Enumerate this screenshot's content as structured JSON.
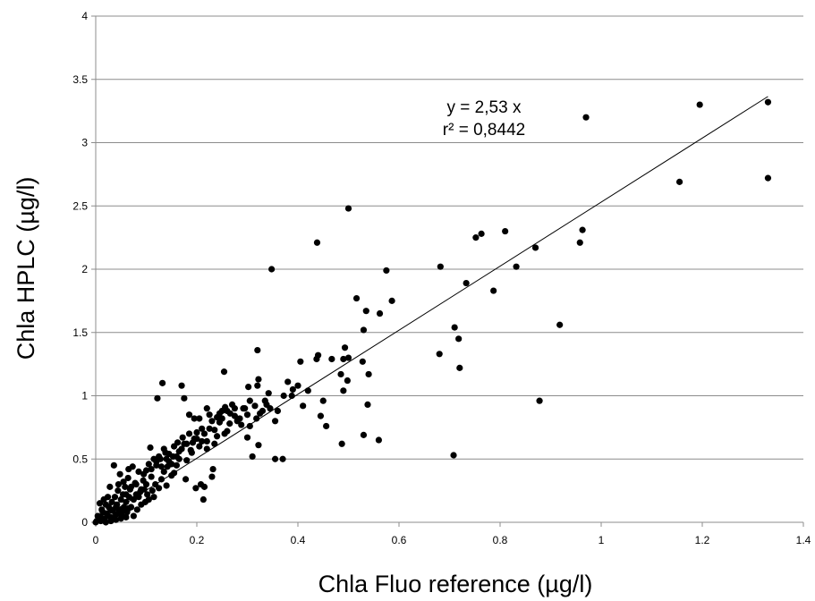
{
  "chart_data": {
    "type": "scatter",
    "xlabel": "Chla Fluo reference (µg/l)",
    "ylabel": "Chla HPLC (µg/l)",
    "xlim": [
      0,
      1.4
    ],
    "ylim": [
      0,
      4
    ],
    "xticks": [
      "0",
      "0.2",
      "0.4",
      "0.6",
      "0.8",
      "1",
      "1.2",
      "1.4"
    ],
    "yticks": [
      "0",
      "0.5",
      "1",
      "1.5",
      "2",
      "2.5",
      "3",
      "3.5",
      "4"
    ],
    "xtick_values": [
      0,
      0.2,
      0.4,
      0.6,
      0.8,
      1.0,
      1.2,
      1.4
    ],
    "ytick_values": [
      0,
      0.5,
      1,
      1.5,
      2,
      2.5,
      3,
      3.5,
      4
    ],
    "grid": "horizontal",
    "marker_color": "#000000",
    "trendline": {
      "slope": 2.53,
      "x_range": [
        0,
        1.33
      ]
    },
    "annotations": [
      "y = 2,53 x",
      "r² = 0,8442"
    ],
    "points": [
      [
        1.33,
        3.32
      ],
      [
        1.33,
        2.72
      ],
      [
        1.195,
        3.3
      ],
      [
        1.155,
        2.69
      ],
      [
        0.97,
        3.2
      ],
      [
        0.963,
        2.31
      ],
      [
        0.958,
        2.21
      ],
      [
        0.918,
        1.56
      ],
      [
        0.878,
        0.96
      ],
      [
        0.87,
        2.17
      ],
      [
        0.832,
        2.02
      ],
      [
        0.81,
        2.3
      ],
      [
        0.787,
        1.83
      ],
      [
        0.763,
        2.28
      ],
      [
        0.752,
        2.25
      ],
      [
        0.733,
        1.89
      ],
      [
        0.72,
        1.22
      ],
      [
        0.718,
        1.45
      ],
      [
        0.71,
        1.54
      ],
      [
        0.708,
        0.53
      ],
      [
        0.682,
        2.02
      ],
      [
        0.68,
        1.33
      ],
      [
        0.586,
        1.75
      ],
      [
        0.575,
        1.99
      ],
      [
        0.562,
        1.65
      ],
      [
        0.56,
        0.65
      ],
      [
        0.54,
        1.17
      ],
      [
        0.538,
        0.93
      ],
      [
        0.535,
        1.67
      ],
      [
        0.53,
        1.52
      ],
      [
        0.53,
        0.69
      ],
      [
        0.528,
        1.27
      ],
      [
        0.516,
        1.77
      ],
      [
        0.5,
        2.48
      ],
      [
        0.5,
        1.3
      ],
      [
        0.498,
        1.12
      ],
      [
        0.493,
        1.38
      ],
      [
        0.49,
        1.29
      ],
      [
        0.49,
        1.04
      ],
      [
        0.487,
        0.62
      ],
      [
        0.485,
        1.17
      ],
      [
        0.467,
        1.29
      ],
      [
        0.456,
        0.76
      ],
      [
        0.45,
        0.96
      ],
      [
        0.445,
        0.84
      ],
      [
        0.44,
        1.32
      ],
      [
        0.438,
        2.21
      ],
      [
        0.437,
        1.29
      ],
      [
        0.42,
        1.04
      ],
      [
        0.41,
        0.92
      ],
      [
        0.405,
        1.27
      ],
      [
        0.4,
        1.08
      ],
      [
        0.39,
        1.05
      ],
      [
        0.388,
        1.0
      ],
      [
        0.38,
        1.11
      ],
      [
        0.372,
        1.0
      ],
      [
        0.37,
        0.5
      ],
      [
        0.36,
        0.88
      ],
      [
        0.355,
        0.5
      ],
      [
        0.355,
        0.8
      ],
      [
        0.348,
        2.0
      ],
      [
        0.345,
        0.9
      ],
      [
        0.342,
        1.02
      ],
      [
        0.338,
        0.93
      ],
      [
        0.33,
        0.88
      ],
      [
        0.322,
        1.13
      ],
      [
        0.322,
        0.61
      ],
      [
        0.32,
        1.36
      ],
      [
        0.32,
        1.08
      ],
      [
        0.318,
        0.82
      ],
      [
        0.31,
        0.52
      ],
      [
        0.305,
        0.96
      ],
      [
        0.302,
        1.07
      ],
      [
        0.3,
        0.85
      ],
      [
        0.3,
        0.67
      ],
      [
        0.292,
        0.9
      ],
      [
        0.288,
        0.77
      ],
      [
        0.28,
        0.8
      ],
      [
        0.275,
        0.84
      ],
      [
        0.27,
        0.93
      ],
      [
        0.266,
        0.86
      ],
      [
        0.26,
        0.72
      ],
      [
        0.256,
        0.91
      ],
      [
        0.254,
        1.19
      ],
      [
        0.25,
        0.88
      ],
      [
        0.245,
        0.79
      ],
      [
        0.24,
        0.83
      ],
      [
        0.235,
        0.73
      ],
      [
        0.232,
        0.42
      ],
      [
        0.23,
        0.36
      ],
      [
        0.225,
        0.85
      ],
      [
        0.22,
        0.64
      ],
      [
        0.22,
        0.9
      ],
      [
        0.215,
        0.28
      ],
      [
        0.213,
        0.18
      ],
      [
        0.21,
        0.74
      ],
      [
        0.208,
        0.3
      ],
      [
        0.205,
        0.82
      ],
      [
        0.2,
        0.71
      ],
      [
        0.198,
        0.27
      ],
      [
        0.195,
        0.82
      ],
      [
        0.192,
        0.63
      ],
      [
        0.188,
        0.57
      ],
      [
        0.185,
        0.85
      ],
      [
        0.18,
        0.49
      ],
      [
        0.178,
        0.34
      ],
      [
        0.175,
        0.98
      ],
      [
        0.172,
        0.67
      ],
      [
        0.17,
        1.08
      ],
      [
        0.165,
        0.5
      ],
      [
        0.162,
        0.63
      ],
      [
        0.16,
        0.45
      ],
      [
        0.155,
        0.39
      ],
      [
        0.153,
        0.52
      ],
      [
        0.15,
        0.37
      ],
      [
        0.145,
        0.48
      ],
      [
        0.142,
        0.44
      ],
      [
        0.14,
        0.29
      ],
      [
        0.138,
        0.55
      ],
      [
        0.135,
        0.4
      ],
      [
        0.132,
        1.1
      ],
      [
        0.13,
        0.34
      ],
      [
        0.128,
        0.5
      ],
      [
        0.125,
        0.27
      ],
      [
        0.122,
        0.98
      ],
      [
        0.12,
        0.45
      ],
      [
        0.118,
        0.3
      ],
      [
        0.115,
        0.5
      ],
      [
        0.112,
        0.25
      ],
      [
        0.11,
        0.36
      ],
      [
        0.108,
        0.59
      ],
      [
        0.105,
        0.18
      ],
      [
        0.102,
        0.22
      ],
      [
        0.1,
        0.41
      ],
      [
        0.098,
        0.16
      ],
      [
        0.096,
        0.26
      ],
      [
        0.094,
        0.33
      ],
      [
        0.09,
        0.14
      ],
      [
        0.088,
        0.24
      ],
      [
        0.085,
        0.4
      ],
      [
        0.082,
        0.1
      ],
      [
        0.08,
        0.22
      ],
      [
        0.078,
        0.31
      ],
      [
        0.075,
        0.18
      ],
      [
        0.073,
        0.44
      ],
      [
        0.07,
        0.12
      ],
      [
        0.068,
        0.26
      ],
      [
        0.066,
        0.2
      ],
      [
        0.064,
        0.35
      ],
      [
        0.062,
        0.08
      ],
      [
        0.06,
        0.16
      ],
      [
        0.058,
        0.28
      ],
      [
        0.056,
        0.12
      ],
      [
        0.054,
        0.22
      ],
      [
        0.052,
        0.05
      ],
      [
        0.05,
        0.18
      ],
      [
        0.048,
        0.38
      ],
      [
        0.046,
        0.1
      ],
      [
        0.044,
        0.25
      ],
      [
        0.042,
        0.14
      ],
      [
        0.04,
        0.06
      ],
      [
        0.038,
        0.2
      ],
      [
        0.036,
        0.45
      ],
      [
        0.034,
        0.09
      ],
      [
        0.032,
        0.16
      ],
      [
        0.03,
        0.04
      ],
      [
        0.028,
        0.28
      ],
      [
        0.026,
        0.12
      ],
      [
        0.024,
        0.2
      ],
      [
        0.022,
        0.07
      ],
      [
        0.02,
        0.14
      ],
      [
        0.018,
        0.03
      ],
      [
        0.016,
        0.18
      ],
      [
        0.014,
        0.08
      ],
      [
        0.012,
        0.1
      ],
      [
        0.01,
        0.04
      ],
      [
        0.008,
        0.15
      ],
      [
        0.006,
        0.02
      ],
      [
        0.004,
        0.05
      ],
      [
        0.002,
        0.01
      ],
      [
        0.0,
        0.0
      ],
      [
        0.045,
        0.3
      ],
      [
        0.055,
        0.32
      ],
      [
        0.065,
        0.42
      ],
      [
        0.075,
        0.05
      ],
      [
        0.085,
        0.2
      ],
      [
        0.095,
        0.38
      ],
      [
        0.105,
        0.46
      ],
      [
        0.115,
        0.2
      ],
      [
        0.125,
        0.52
      ],
      [
        0.135,
        0.58
      ],
      [
        0.145,
        0.54
      ],
      [
        0.155,
        0.6
      ],
      [
        0.165,
        0.56
      ],
      [
        0.175,
        0.62
      ],
      [
        0.185,
        0.7
      ],
      [
        0.195,
        0.66
      ],
      [
        0.205,
        0.6
      ],
      [
        0.215,
        0.7
      ],
      [
        0.225,
        0.74
      ],
      [
        0.235,
        0.62
      ],
      [
        0.245,
        0.86
      ],
      [
        0.255,
        0.7
      ],
      [
        0.265,
        0.78
      ],
      [
        0.275,
        0.9
      ],
      [
        0.285,
        0.82
      ],
      [
        0.295,
        0.9
      ],
      [
        0.305,
        0.76
      ],
      [
        0.315,
        0.92
      ],
      [
        0.325,
        0.86
      ],
      [
        0.335,
        0.96
      ],
      [
        0.03,
        0.1
      ],
      [
        0.04,
        0.12
      ],
      [
        0.05,
        0.08
      ],
      [
        0.06,
        0.22
      ],
      [
        0.07,
        0.28
      ],
      [
        0.08,
        0.3
      ],
      [
        0.09,
        0.26
      ],
      [
        0.1,
        0.3
      ],
      [
        0.11,
        0.42
      ],
      [
        0.12,
        0.48
      ],
      [
        0.13,
        0.44
      ],
      [
        0.14,
        0.5
      ],
      [
        0.15,
        0.46
      ],
      [
        0.16,
        0.52
      ],
      [
        0.17,
        0.58
      ],
      [
        0.18,
        0.62
      ],
      [
        0.19,
        0.55
      ],
      [
        0.2,
        0.66
      ],
      [
        0.21,
        0.64
      ],
      [
        0.22,
        0.58
      ],
      [
        0.23,
        0.8
      ],
      [
        0.24,
        0.68
      ],
      [
        0.25,
        0.82
      ],
      [
        0.26,
        0.88
      ],
      [
        0.015,
        0.02
      ],
      [
        0.025,
        0.05
      ],
      [
        0.035,
        0.03
      ],
      [
        0.045,
        0.07
      ],
      [
        0.055,
        0.09
      ],
      [
        0.065,
        0.11
      ],
      [
        0.02,
        0.0
      ],
      [
        0.03,
        0.01
      ],
      [
        0.04,
        0.02
      ],
      [
        0.05,
        0.03
      ],
      [
        0.06,
        0.04
      ],
      [
        0.01,
        0.01
      ]
    ]
  }
}
